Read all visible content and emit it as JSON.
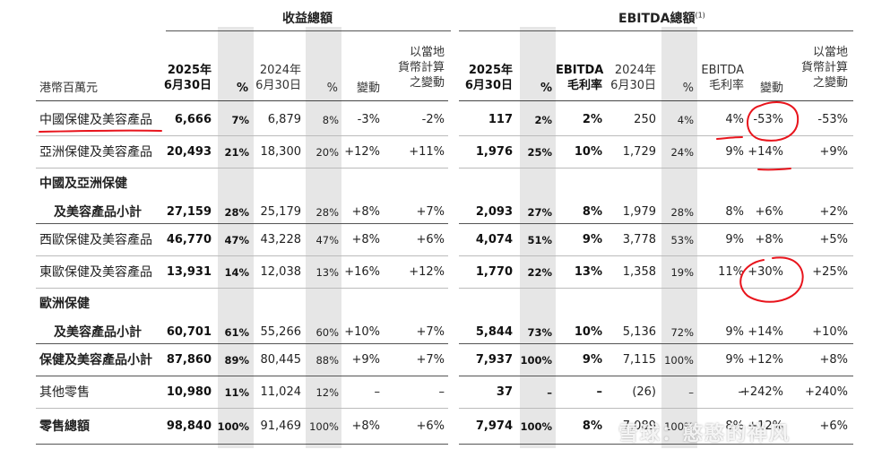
{
  "groups": {
    "revenue_title": "收益總額",
    "ebitda_title": "EBITDA總額",
    "ebitda_note": "(1)"
  },
  "headers": {
    "unit": "港幣百萬元",
    "rev_2025": [
      "2025年",
      "6月30日"
    ],
    "rev_pct1": "%",
    "rev_2024": [
      "2024年",
      "6月30日"
    ],
    "rev_pct2": "%",
    "rev_change": "變動",
    "rev_local": [
      "以當地",
      "貨幣計算",
      "之變動"
    ],
    "eb_2025": [
      "2025年",
      "6月30日"
    ],
    "eb_pct1": "%",
    "eb_margin1": [
      "EBITDA",
      "毛利率"
    ],
    "eb_2024": [
      "2024年",
      "6月30日"
    ],
    "eb_pct2": "%",
    "eb_margin2": [
      "EBITDA",
      "毛利率"
    ],
    "eb_change": "變動",
    "eb_local": [
      "以當地",
      "貨幣計算",
      "之變動"
    ]
  },
  "rows": [
    {
      "label": "中國保健及美容產品",
      "cells": [
        "6,666",
        "7%",
        "6,879",
        "8%",
        "-3%",
        "-2%",
        "117",
        "2%",
        "2%",
        "250",
        "4%",
        "4%",
        "-53%",
        "-53%"
      ]
    },
    {
      "label": "亞洲保健及美容產品",
      "cells": [
        "20,493",
        "21%",
        "18,300",
        "20%",
        "+12%",
        "+11%",
        "1,976",
        "25%",
        "10%",
        "1,729",
        "24%",
        "9%",
        "+14%",
        "+9%"
      ]
    },
    {
      "label": "中國及亞洲保健",
      "label2": "及美容產品小計",
      "cells": [
        "27,159",
        "28%",
        "25,179",
        "28%",
        "+8%",
        "+7%",
        "2,093",
        "27%",
        "8%",
        "1,979",
        "28%",
        "8%",
        "+6%",
        "+2%"
      ]
    },
    {
      "label": "西歐保健及美容產品",
      "cells": [
        "46,770",
        "47%",
        "43,228",
        "47%",
        "+8%",
        "+6%",
        "4,074",
        "51%",
        "9%",
        "3,778",
        "53%",
        "9%",
        "+8%",
        "+5%"
      ]
    },
    {
      "label": "東歐保健及美容產品",
      "cells": [
        "13,931",
        "14%",
        "12,038",
        "13%",
        "+16%",
        "+12%",
        "1,770",
        "22%",
        "13%",
        "1,358",
        "19%",
        "11%",
        "+30%",
        "+25%"
      ]
    },
    {
      "label": "歐洲保健",
      "label2": "及美容產品小計",
      "cells": [
        "60,701",
        "61%",
        "55,266",
        "60%",
        "+10%",
        "+7%",
        "5,844",
        "73%",
        "10%",
        "5,136",
        "72%",
        "9%",
        "+14%",
        "+10%"
      ]
    },
    {
      "label": "保健及美容產品小計",
      "cells": [
        "87,860",
        "89%",
        "80,445",
        "88%",
        "+9%",
        "+7%",
        "7,937",
        "100%",
        "9%",
        "7,115",
        "100%",
        "9%",
        "+12%",
        "+8%"
      ]
    },
    {
      "label": "其他零售",
      "cells": [
        "10,980",
        "11%",
        "11,024",
        "12%",
        "–",
        "–",
        "37",
        "–",
        "–",
        "(26)",
        "–",
        "–",
        "+242%",
        "+240%"
      ]
    },
    {
      "label": "零售總額",
      "cells": [
        "98,840",
        "100%",
        "91,469",
        "100%",
        "+8%",
        "+6%",
        "7,974",
        "100%",
        "8%",
        "7,089",
        "100%",
        "8%",
        "+12%",
        "+6%"
      ]
    }
  ],
  "watermark": "雪球：憨憨的禅风",
  "colors": {
    "annotation": "#e8141c",
    "shade": "#e6e6e6"
  }
}
